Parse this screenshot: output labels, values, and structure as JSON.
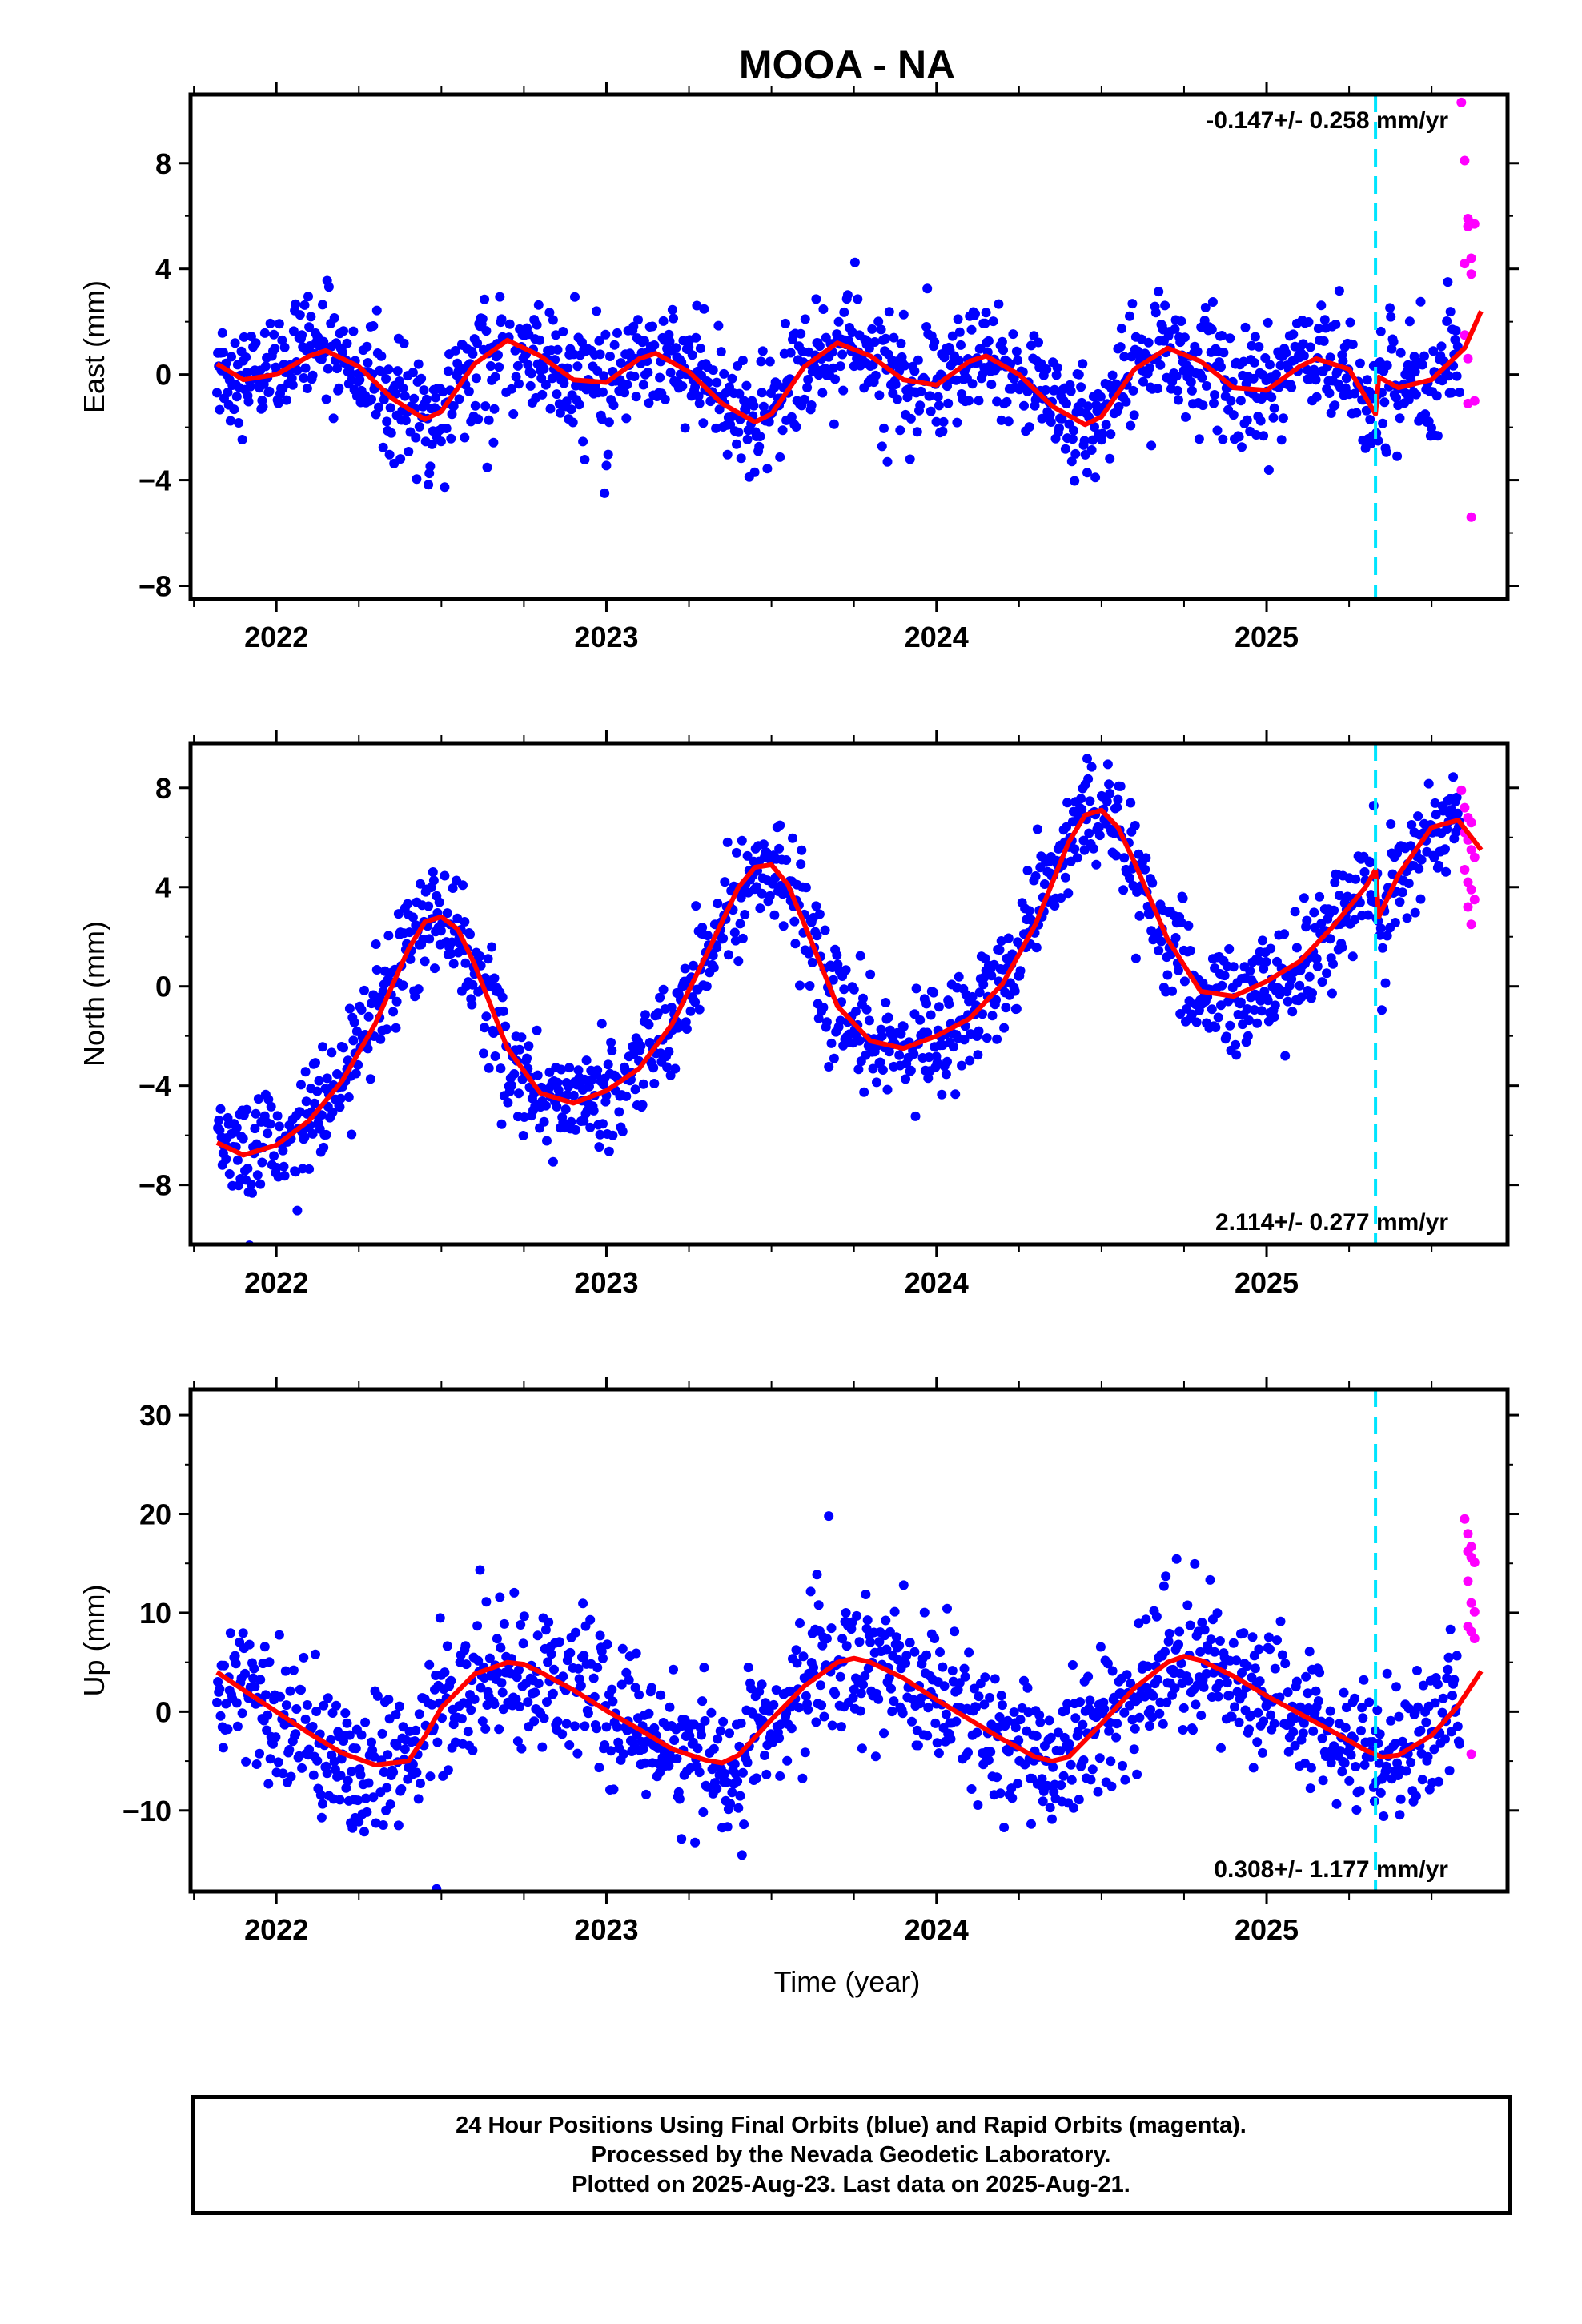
{
  "title": "MOOA - NA",
  "xlabel": "Time (year)",
  "footer": {
    "line1": "24 Hour Positions Using Final Orbits (blue) and Rapid Orbits (magenta).",
    "line2": "Processed by the Nevada Geodetic Laboratory.",
    "line3": "Plotted on 2025-Aug-23. Last data on 2025-Aug-21."
  },
  "colors": {
    "final": "#0000ff",
    "rapid": "#ff00ff",
    "model": "#ff0000",
    "event": "#00e5ff"
  },
  "chart_data": [
    {
      "type": "scatter",
      "ylabel": "East (mm)",
      "rate_label": "-0.147+/- 0.258 mm/yr",
      "rate_position": "top-right",
      "xlim": [
        2021.74,
        2025.73
      ],
      "ylim": [
        -8.5,
        10.6
      ],
      "yticks": [
        -8,
        -4,
        0,
        4,
        8
      ],
      "xticks": [
        2022,
        2023,
        2024,
        2025
      ],
      "event_x": 2025.33,
      "model": {
        "x": [
          2021.82,
          2021.9,
          2022.0,
          2022.1,
          2022.15,
          2022.25,
          2022.35,
          2022.45,
          2022.5,
          2022.6,
          2022.7,
          2022.8,
          2022.9,
          2023.0,
          2023.1,
          2023.15,
          2023.25,
          2023.35,
          2023.45,
          2023.5,
          2023.6,
          2023.7,
          2023.8,
          2023.9,
          2024.0,
          2024.1,
          2024.15,
          2024.25,
          2024.35,
          2024.45,
          2024.5,
          2024.6,
          2024.7,
          2024.8,
          2024.9,
          2025.0,
          2025.1,
          2025.15,
          2025.25,
          2025.33,
          2025.34,
          2025.4,
          2025.5,
          2025.6,
          2025.65
        ],
        "y": [
          0.4,
          -0.2,
          0.0,
          0.7,
          0.9,
          0.3,
          -0.9,
          -1.7,
          -1.4,
          0.4,
          1.3,
          0.7,
          -0.2,
          -0.3,
          0.6,
          0.8,
          0.1,
          -1.1,
          -1.8,
          -1.5,
          0.3,
          1.2,
          0.7,
          -0.2,
          -0.4,
          0.5,
          0.7,
          0.0,
          -1.2,
          -1.9,
          -1.6,
          0.2,
          1.0,
          0.5,
          -0.5,
          -0.6,
          0.3,
          0.6,
          0.2,
          -1.5,
          -0.1,
          -0.5,
          -0.2,
          1.0,
          2.4
        ]
      },
      "rapid": {
        "x": [
          2025.59,
          2025.6,
          2025.61,
          2025.6,
          2025.62,
          2025.61,
          2025.62,
          2025.63,
          2025.6,
          2025.61,
          2025.62,
          2025.61,
          2025.63,
          2025.62
        ],
        "y": [
          10.3,
          8.1,
          5.9,
          4.2,
          3.8,
          5.6,
          5.7,
          5.7,
          1.5,
          0.6,
          4.4,
          -1.1,
          -1.0,
          -5.4
        ]
      }
    },
    {
      "type": "scatter",
      "ylabel": "North (mm)",
      "rate_label": "2.114+/- 0.277 mm/yr",
      "rate_position": "bottom-right",
      "xlim": [
        2021.74,
        2025.73
      ],
      "ylim": [
        -10.4,
        9.8
      ],
      "yticks": [
        -8,
        -4,
        0,
        4,
        8
      ],
      "xticks": [
        2022,
        2023,
        2024,
        2025
      ],
      "event_x": 2025.33,
      "model": {
        "x": [
          2021.82,
          2021.9,
          2022.0,
          2022.1,
          2022.2,
          2022.3,
          2022.4,
          2022.45,
          2022.5,
          2022.55,
          2022.6,
          2022.7,
          2022.8,
          2022.9,
          2023.0,
          2023.1,
          2023.2,
          2023.3,
          2023.4,
          2023.45,
          2023.5,
          2023.55,
          2023.6,
          2023.7,
          2023.8,
          2023.9,
          2024.0,
          2024.1,
          2024.2,
          2024.3,
          2024.4,
          2024.45,
          2024.5,
          2024.55,
          2024.6,
          2024.7,
          2024.8,
          2024.9,
          2025.0,
          2025.1,
          2025.2,
          2025.3,
          2025.33,
          2025.34,
          2025.4,
          2025.5,
          2025.58,
          2025.65
        ],
        "y": [
          -6.3,
          -6.8,
          -6.4,
          -5.4,
          -3.8,
          -1.5,
          1.5,
          2.6,
          2.8,
          2.3,
          0.9,
          -2.5,
          -4.3,
          -4.7,
          -4.2,
          -3.3,
          -1.5,
          1.2,
          4.0,
          4.8,
          4.9,
          4.1,
          2.5,
          -0.8,
          -2.2,
          -2.5,
          -2.0,
          -1.3,
          0.1,
          2.5,
          5.8,
          6.9,
          7.1,
          6.4,
          5.0,
          1.9,
          -0.2,
          -0.4,
          0.2,
          1.0,
          2.4,
          4.0,
          4.7,
          2.8,
          4.5,
          6.4,
          6.7,
          5.5
        ]
      },
      "rapid": {
        "x": [
          2025.59,
          2025.6,
          2025.61,
          2025.62,
          2025.6,
          2025.61,
          2025.62,
          2025.63,
          2025.6,
          2025.61,
          2025.62,
          2025.63,
          2025.61,
          2025.62
        ],
        "y": [
          7.9,
          7.2,
          6.8,
          6.6,
          6.2,
          5.9,
          5.5,
          5.2,
          4.7,
          4.2,
          3.9,
          3.5,
          3.2,
          2.5
        ]
      }
    },
    {
      "type": "scatter",
      "ylabel": "Up (mm)",
      "rate_label": "0.308+/- 1.177 mm/yr",
      "rate_position": "bottom-right",
      "xlim": [
        2021.74,
        2025.73
      ],
      "ylim": [
        -18.2,
        32.6
      ],
      "yticks": [
        -10,
        0,
        10,
        20,
        30
      ],
      "xticks": [
        2022,
        2023,
        2024,
        2025
      ],
      "event_x": 2025.33,
      "model": {
        "x": [
          2021.82,
          2021.9,
          2022.0,
          2022.1,
          2022.2,
          2022.3,
          2022.4,
          2022.45,
          2022.5,
          2022.6,
          2022.7,
          2022.75,
          2022.8,
          2022.9,
          2023.0,
          2023.1,
          2023.2,
          2023.3,
          2023.35,
          2023.4,
          2023.5,
          2023.6,
          2023.7,
          2023.75,
          2023.8,
          2023.9,
          2024.0,
          2024.1,
          2024.2,
          2024.3,
          2024.35,
          2024.4,
          2024.5,
          2024.6,
          2024.7,
          2024.75,
          2024.8,
          2024.9,
          2025.0,
          2025.1,
          2025.2,
          2025.3,
          2025.35,
          2025.4,
          2025.5,
          2025.58,
          2025.65
        ],
        "y": [
          4.0,
          2.2,
          0.0,
          -2.2,
          -4.2,
          -5.4,
          -5.0,
          -2.5,
          0.4,
          3.8,
          5.0,
          4.8,
          4.0,
          2.2,
          0.1,
          -1.8,
          -3.8,
          -4.9,
          -5.2,
          -4.4,
          -0.8,
          2.6,
          5.0,
          5.4,
          5.0,
          3.4,
          1.2,
          -0.8,
          -2.8,
          -4.6,
          -5.0,
          -4.6,
          -1.2,
          2.4,
          5.0,
          5.6,
          5.2,
          3.6,
          1.6,
          -0.2,
          -2.0,
          -3.9,
          -4.6,
          -4.4,
          -2.4,
          0.6,
          4.1
        ]
      },
      "rapid": {
        "x": [
          2025.6,
          2025.61,
          2025.62,
          2025.61,
          2025.62,
          2025.63,
          2025.61,
          2025.62,
          2025.63,
          2025.61,
          2025.62,
          2025.63,
          2025.62
        ],
        "y": [
          19.5,
          18.0,
          16.7,
          16.2,
          15.6,
          15.1,
          13.2,
          11.0,
          10.1,
          8.6,
          8.1,
          7.4,
          -4.3
        ]
      }
    }
  ]
}
